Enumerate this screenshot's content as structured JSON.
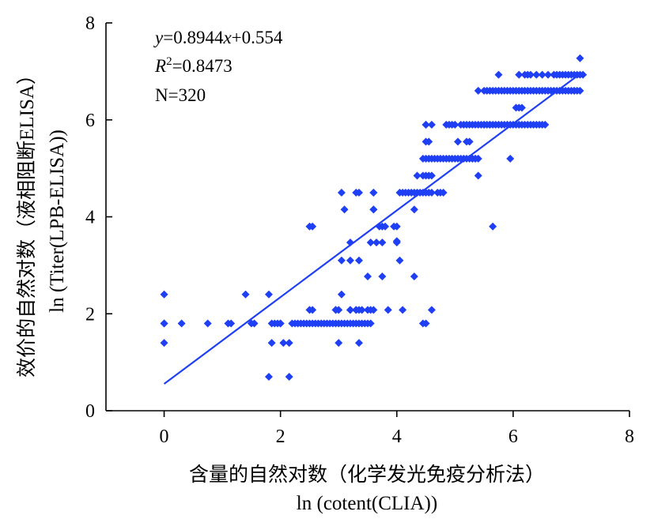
{
  "chart_data": {
    "type": "scatter",
    "xlim": [
      -1,
      8
    ],
    "ylim": [
      0,
      8
    ],
    "x_ticks": [
      0,
      2,
      4,
      6,
      8
    ],
    "y_ticks": [
      0,
      2,
      4,
      6,
      8
    ],
    "xlabel": "含量的自然对数（化学发光免疫分析法）",
    "xlabel2": "ln (cotent(CLIA))",
    "ylabel": "效价的自然对数（液相阻断ELISA）",
    "ylabel2": "ln (Titer(LPB-ELISA))",
    "annotations": {
      "equation_y": "y",
      "equation_mid": "=0.8944",
      "equation_x": "x",
      "equation_rest": "+0.554",
      "r2_R": "R",
      "r2_sup": "2",
      "r2_rest": "=0.8473",
      "n": "N=320"
    },
    "marker_color": "#1f3ff5",
    "line_color": "#1f3ff5",
    "fit_line": {
      "slope": 0.8944,
      "intercept": 0.554,
      "x_range": [
        0,
        7.15
      ]
    },
    "series": [
      {
        "x": [
          0,
          0,
          0,
          0,
          0.3,
          0.75,
          1.1,
          1.15,
          1.5,
          1.55,
          1.4,
          1.8,
          1.85,
          1.9,
          1.95,
          2.0,
          2.05,
          2.15,
          1.8,
          1.85,
          2.15,
          2.2,
          2.25,
          2.3,
          2.35,
          2.4,
          2.45,
          2.5,
          2.55,
          2.6,
          2.65,
          2.7,
          2.75,
          2.8,
          2.85,
          2.9,
          2.95,
          3.0,
          3.05,
          3.1,
          3.15,
          3.2,
          3.25,
          3.3,
          3.35,
          3.4,
          3.45,
          3.5,
          3.55,
          2.5,
          2.55,
          2.95,
          3.0,
          3.2,
          3.3,
          3.4,
          3.5,
          3.55,
          3.6,
          3.85,
          4.1,
          4.5,
          4.6,
          3.0,
          3.35,
          4.45,
          2.95,
          3.35,
          3.05,
          3.2,
          3.3,
          2.0,
          3.35,
          3.05,
          3.2,
          3.5,
          3.75,
          4.3,
          4.05,
          3.7,
          3.8,
          3.55,
          3.65,
          3.75,
          4.0,
          4.0,
          3.95,
          2.5,
          2.55,
          3.1,
          3.2,
          3.6,
          3.75,
          4.0,
          3.05,
          3.3,
          3.35,
          3.6,
          4.05,
          4.1,
          4.15,
          4.2,
          4.25,
          4.3,
          4.35,
          4.4,
          4.45,
          4.5,
          4.55,
          4.6,
          4.3,
          3.6,
          3.6,
          4.35,
          4.45,
          4.5,
          4.55,
          4.6,
          4.7,
          4.75,
          4.8,
          4.45,
          4.5,
          4.55,
          4.6,
          4.65,
          4.7,
          4.75,
          4.8,
          4.85,
          4.9,
          4.95,
          5.0,
          5.05,
          5.1,
          5.15,
          5.2,
          5.25,
          5.3,
          5.35,
          5.4,
          4.5,
          4.55,
          4.6,
          4.5,
          5.05,
          5.2,
          5.25,
          5.3,
          5.4,
          4.5,
          4.85,
          4.9,
          4.95,
          5.0,
          5.1,
          5.15,
          5.2,
          5.25,
          5.3,
          5.35,
          5.4,
          5.45,
          5.5,
          5.55,
          5.6,
          5.65,
          5.7,
          5.75,
          5.8,
          5.85,
          5.9,
          5.95,
          6.0,
          6.05,
          6.1,
          6.15,
          6.2,
          6.25,
          6.3,
          6.35,
          6.4,
          6.45,
          6.5,
          6.55,
          5.5,
          5.6,
          5.65,
          5.95,
          5.35,
          6.05,
          6.1,
          6.15,
          5.4,
          5.5,
          5.55,
          5.6,
          5.65,
          5.7,
          5.75,
          5.8,
          5.85,
          5.9,
          5.95,
          6.0,
          6.05,
          6.1,
          6.15,
          6.2,
          6.25,
          6.3,
          6.35,
          6.4,
          6.45,
          6.5,
          6.55,
          6.6,
          6.65,
          6.7,
          6.75,
          6.8,
          6.85,
          6.9,
          6.95,
          7.0,
          7.05,
          7.1,
          7.15,
          5.75,
          6.1,
          6.2,
          6.25,
          6.3,
          6.4,
          6.5,
          6.6,
          6.7,
          6.75,
          6.8,
          6.85,
          6.9,
          6.95,
          7.0,
          7.05,
          7.1,
          7.15,
          7.2,
          7.15,
          7.05
        ],
        "y": [
          2.4,
          1.8,
          1.8,
          1.4,
          1.8,
          1.8,
          1.8,
          1.8,
          1.8,
          1.8,
          2.4,
          2.4,
          1.8,
          1.8,
          1.8,
          1.8,
          1.4,
          1.4,
          0.7,
          1.4,
          0.7,
          1.8,
          1.8,
          1.8,
          1.8,
          1.8,
          1.8,
          1.8,
          1.8,
          1.8,
          1.8,
          1.8,
          1.8,
          1.8,
          1.8,
          1.8,
          1.8,
          1.8,
          1.8,
          1.8,
          1.8,
          1.8,
          1.8,
          1.8,
          1.8,
          1.8,
          1.8,
          1.8,
          1.8,
          2.08,
          2.08,
          2.08,
          2.08,
          2.08,
          2.08,
          2.08,
          2.08,
          2.08,
          2.08,
          2.08,
          2.08,
          1.8,
          2.08,
          1.4,
          1.4,
          1.8,
          2.08,
          2.08,
          2.4,
          2.08,
          2.08,
          1.8,
          3.1,
          3.1,
          3.1,
          2.77,
          2.77,
          2.77,
          3.1,
          3.8,
          3.8,
          3.47,
          3.47,
          3.47,
          3.47,
          3.8,
          3.8,
          3.8,
          3.8,
          4.15,
          3.47,
          4.15,
          3.8,
          3.5,
          4.5,
          4.5,
          4.5,
          4.5,
          4.5,
          4.5,
          4.5,
          4.5,
          4.5,
          4.5,
          4.5,
          4.5,
          4.5,
          4.5,
          4.5,
          4.5,
          4.15,
          4.5,
          4.15,
          4.85,
          4.85,
          4.85,
          4.85,
          4.85,
          4.5,
          4.5,
          4.5,
          5.2,
          5.2,
          5.2,
          5.2,
          5.2,
          5.2,
          5.2,
          5.2,
          5.2,
          5.2,
          5.2,
          5.2,
          5.2,
          5.2,
          5.2,
          5.2,
          5.2,
          5.2,
          5.2,
          5.2,
          5.55,
          5.55,
          5.9,
          5.9,
          5.55,
          5.55,
          5.55,
          5.2,
          4.85,
          5.9,
          5.9,
          5.9,
          5.9,
          5.9,
          5.9,
          5.9,
          5.9,
          5.9,
          5.9,
          5.9,
          5.9,
          5.9,
          5.9,
          5.9,
          5.9,
          5.9,
          5.9,
          5.9,
          5.9,
          5.9,
          5.9,
          5.9,
          5.9,
          5.9,
          5.9,
          5.9,
          5.9,
          5.9,
          5.9,
          5.9,
          5.9,
          5.9,
          5.9,
          5.9,
          5.9,
          5.9,
          3.8,
          5.2,
          5.2,
          6.25,
          6.25,
          6.25,
          6.6,
          6.6,
          6.6,
          6.6,
          6.6,
          6.6,
          6.6,
          6.6,
          6.6,
          6.6,
          6.6,
          6.6,
          6.6,
          6.6,
          6.6,
          6.6,
          6.6,
          6.6,
          6.6,
          6.6,
          6.6,
          6.6,
          6.6,
          6.6,
          6.6,
          6.6,
          6.6,
          6.6,
          6.6,
          6.6,
          6.6,
          6.6,
          6.6,
          6.6,
          6.6,
          6.93,
          6.93,
          6.93,
          6.93,
          6.93,
          6.93,
          6.93,
          6.93,
          6.93,
          6.93,
          6.93,
          6.93,
          6.93,
          6.93,
          6.93,
          6.93,
          6.93,
          6.93,
          6.93,
          7.27,
          6.6
        ]
      }
    ]
  }
}
